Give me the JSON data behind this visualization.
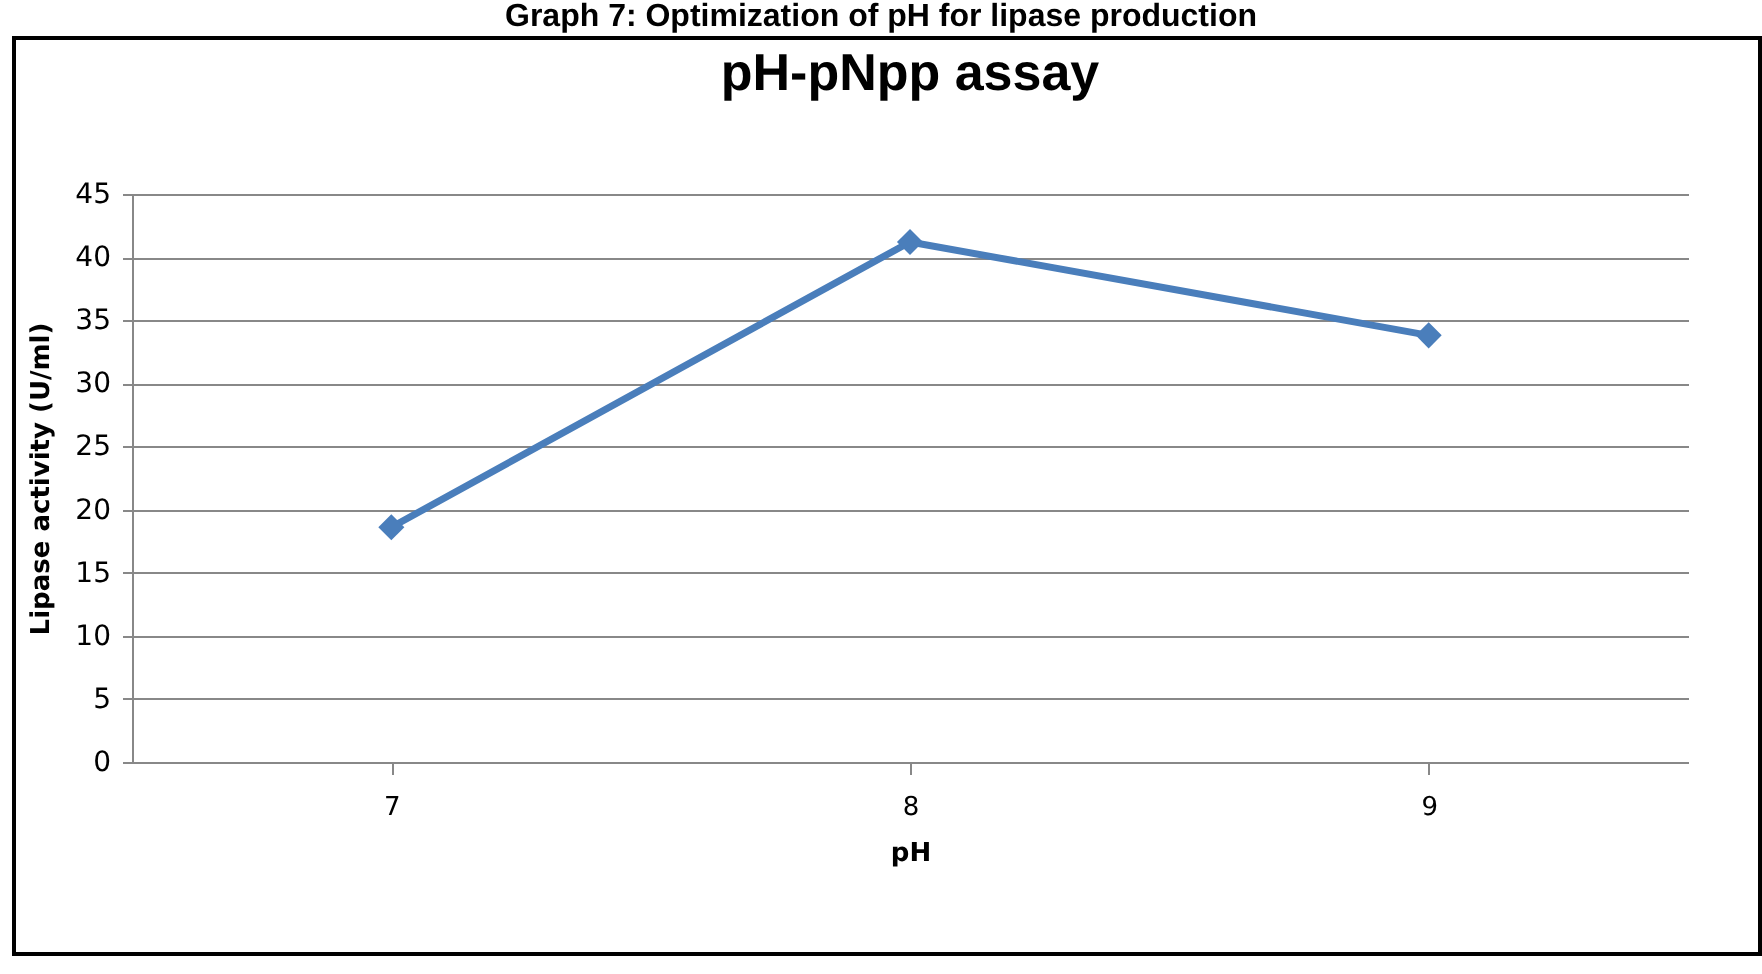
{
  "chart_data": {
    "type": "line",
    "title": "pH-pNpp assay",
    "annotations": [
      "Graph 7: Optimization of pH for lipase production"
    ],
    "xlabel": "pH",
    "ylabel": "Lipase activity (U/ml)",
    "categories": [
      "7",
      "8",
      "9"
    ],
    "series": [
      {
        "color": "#4a7ebb",
        "values": [
          18.6,
          41.2,
          33.8
        ]
      }
    ],
    "ylim": [
      0,
      45
    ],
    "yticks": [
      0,
      5,
      10,
      15,
      20,
      25,
      30,
      35,
      40,
      45
    ],
    "grid": "y",
    "marker": "diamond",
    "line_style": "solid"
  }
}
